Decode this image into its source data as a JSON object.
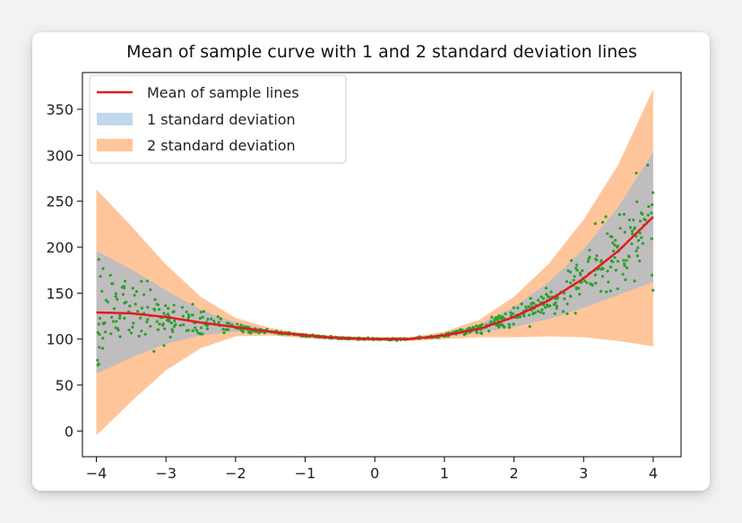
{
  "chart_data": {
    "type": "line",
    "title": "Mean of sample curve with 1 and 2 standard deviation lines",
    "xlabel": "",
    "ylabel": "",
    "xlim": [
      -4.2,
      4.4
    ],
    "ylim": [
      -28,
      390
    ],
    "x_ticks": [
      "-4",
      "-3",
      "-2",
      "-1",
      "0",
      "1",
      "2",
      "3",
      "4"
    ],
    "y_ticks": [
      "0",
      "50",
      "100",
      "150",
      "200",
      "250",
      "300",
      "350"
    ],
    "legend_position": "upper-left",
    "grid": false,
    "series": [
      {
        "name": "Mean of sample lines",
        "kind": "line",
        "color": "#e41a1c",
        "x": [
          -4,
          -3.5,
          -3,
          -2.5,
          -2,
          -1.5,
          -1,
          -0.5,
          0,
          0.5,
          1,
          1.5,
          2,
          2.5,
          3,
          3.5,
          4
        ],
        "y": [
          129,
          128,
          124,
          118,
          113,
          108,
          104,
          101,
          100,
          100,
          104,
          111,
          124,
          142,
          166,
          196,
          233
        ]
      },
      {
        "name": "1 standard deviation",
        "kind": "band",
        "color": "#8db7dc",
        "opacity": 0.55,
        "x": [
          -4,
          -3.5,
          -3,
          -2.5,
          -2,
          -1.5,
          -1,
          -0.5,
          0,
          0.5,
          1,
          1.5,
          2,
          2.5,
          3,
          3.5,
          4
        ],
        "lower": [
          62,
          80,
          95,
          104,
          108,
          106,
          103,
          100,
          99,
          99,
          102,
          107,
          113,
          122,
          134,
          148,
          162
        ],
        "upper": [
          196,
          176,
          153,
          132,
          118,
          110,
          105,
          102,
          101,
          101,
          106,
          116,
          135,
          162,
          198,
          244,
          303
        ]
      },
      {
        "name": "2 standard deviation",
        "kind": "band",
        "color": "#ffbb88",
        "opacity": 0.85,
        "x": [
          -4,
          -3.5,
          -3,
          -2.5,
          -2,
          -1.5,
          -1,
          -0.5,
          0,
          0.5,
          1,
          1.5,
          2,
          2.5,
          3,
          3.5,
          4
        ],
        "lower": [
          -5,
          32,
          66,
          90,
          103,
          104,
          101,
          99,
          98,
          98,
          100,
          102,
          102,
          103,
          102,
          98,
          92
        ],
        "upper": [
          263,
          223,
          181,
          146,
          123,
          112,
          106,
          103,
          102,
          102,
          108,
          121,
          146,
          182,
          230,
          290,
          372
        ]
      },
      {
        "name": "samples",
        "kind": "scatter",
        "color": "#2ca02c"
      }
    ]
  }
}
